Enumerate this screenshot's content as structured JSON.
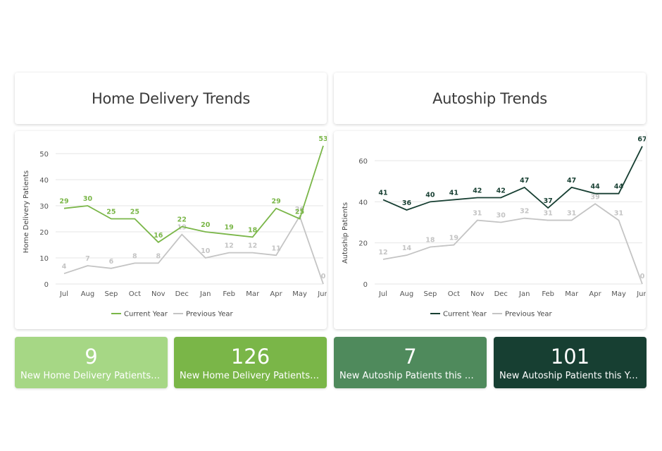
{
  "panels": {
    "home_title": "Home Delivery Trends",
    "auto_title": "Autoship Trends"
  },
  "kpis": [
    {
      "value": "9",
      "label": "New Home Delivery Patients th...",
      "color": "#a6d785"
    },
    {
      "value": "126",
      "label": "New Home Delivery Patients th...",
      "color": "#7ab648"
    },
    {
      "value": "7",
      "label": "New Autoship Patients this Mo...",
      "color": "#4f8a5c"
    },
    {
      "value": "101",
      "label": "New Autoship Patients this Year",
      "color": "#173f32"
    }
  ],
  "chart_data": [
    {
      "type": "line",
      "ylabel": "Home Delivery Patients",
      "categories": [
        "Jul",
        "Aug",
        "Sep",
        "Oct",
        "Nov",
        "Dec",
        "Jan",
        "Feb",
        "Mar",
        "Apr",
        "May",
        "Jun"
      ],
      "ylim": [
        0,
        50
      ],
      "yticks": [
        0,
        10,
        20,
        30,
        40,
        50
      ],
      "grid": true,
      "legend_position": "bottom",
      "series": [
        {
          "name": "Current Year",
          "color": "#7ab648",
          "values": [
            29,
            30,
            25,
            25,
            16,
            22,
            20,
            19,
            18,
            29,
            25,
            53
          ]
        },
        {
          "name": "Previous Year",
          "color": "#c4c4c4",
          "values": [
            4,
            7,
            6,
            8,
            8,
            19,
            10,
            12,
            12,
            11,
            26,
            0
          ]
        }
      ]
    },
    {
      "type": "line",
      "ylabel": "Autoship Patients",
      "categories": [
        "Jul",
        "Aug",
        "Sep",
        "Oct",
        "Nov",
        "Dec",
        "Jan",
        "Feb",
        "Mar",
        "Apr",
        "May",
        "Jun"
      ],
      "ylim": [
        0,
        60
      ],
      "yticks": [
        0,
        20,
        40,
        60
      ],
      "grid": true,
      "legend_position": "bottom",
      "series": [
        {
          "name": "Current Year",
          "color": "#173f32",
          "values": [
            41,
            36,
            40,
            41,
            42,
            42,
            47,
            37,
            47,
            44,
            44,
            67
          ]
        },
        {
          "name": "Previous Year",
          "color": "#c4c4c4",
          "values": [
            12,
            14,
            18,
            19,
            31,
            30,
            32,
            31,
            31,
            39,
            31,
            0
          ]
        }
      ]
    }
  ]
}
